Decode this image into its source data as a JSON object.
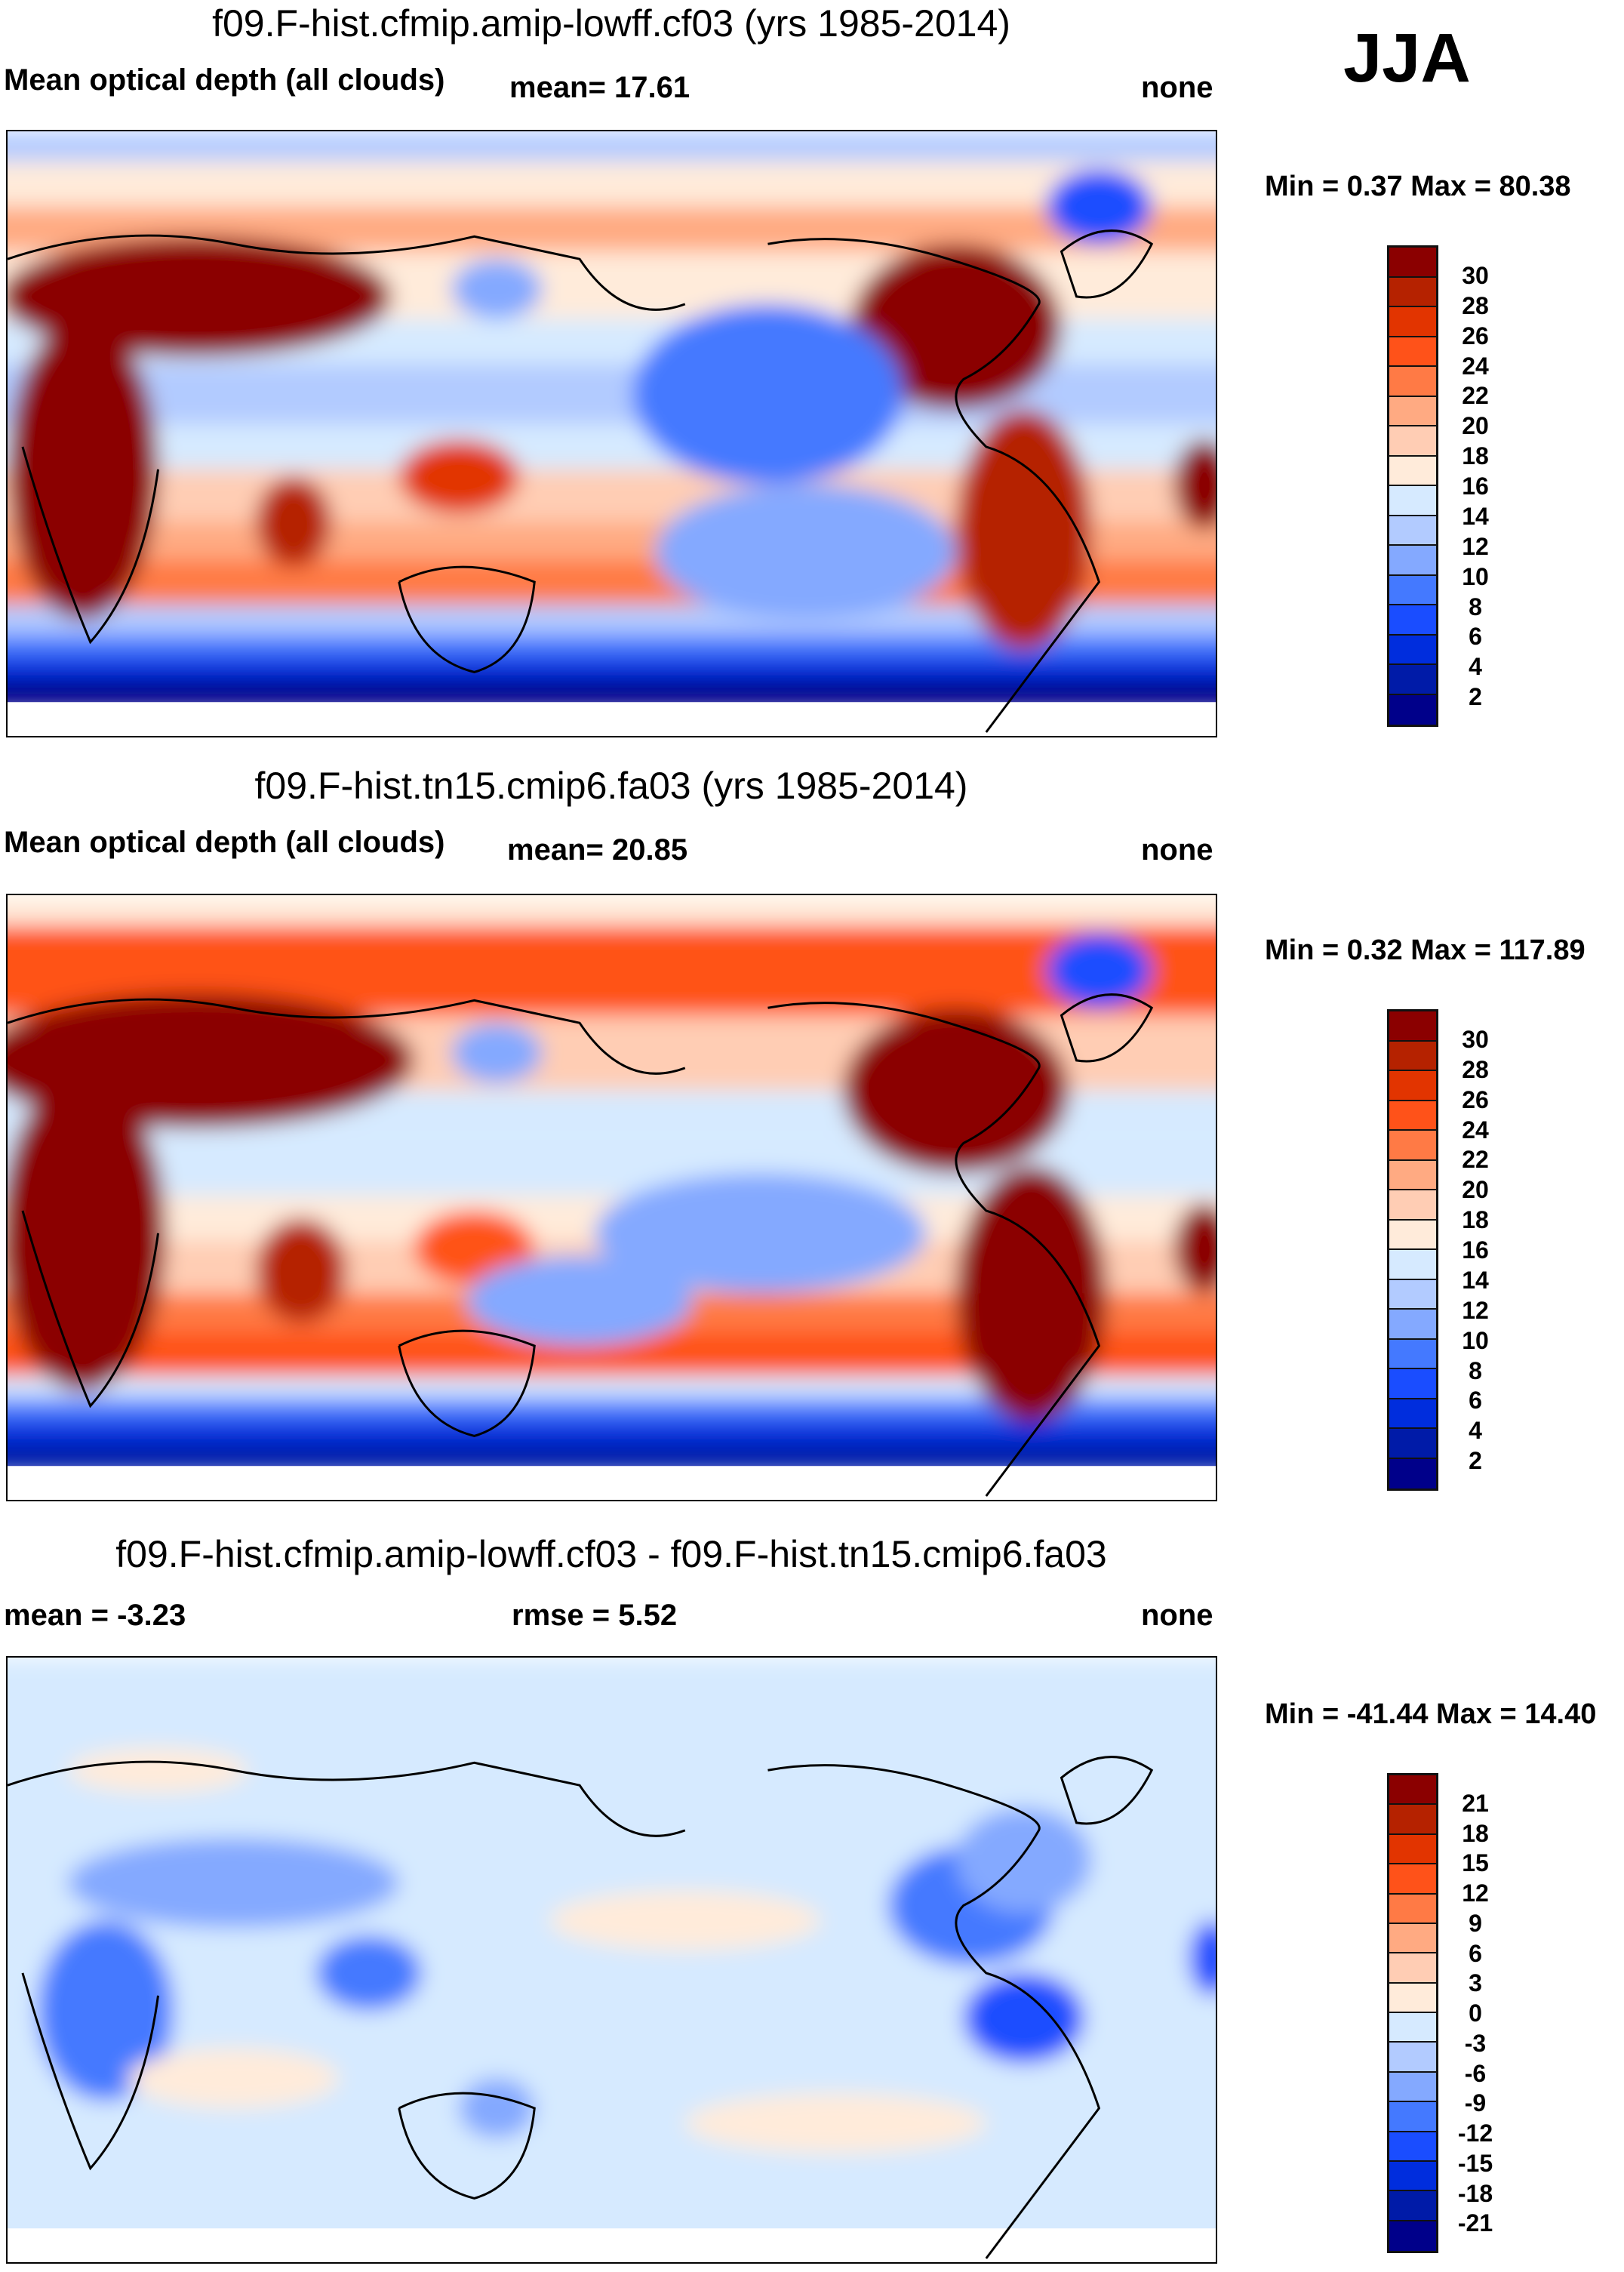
{
  "season": "JJA",
  "chart_data": [
    {
      "type": "heatmap",
      "title": "f09.F-hist.cfmip.amip-lowff.cf03 (yrs 1985-2014)",
      "variable": "Mean optical depth (all clouds)",
      "mean_label": "mean=  17.61",
      "right_label": "none",
      "minmax_label": "Min =   0.37 Max =  80.38",
      "min": 0.37,
      "max": 80.38,
      "mean": 17.61,
      "levels": [
        "30",
        "28",
        "26",
        "24",
        "22",
        "20",
        "18",
        "16",
        "14",
        "12",
        "10",
        "8",
        "6",
        "4",
        "2"
      ],
      "colors": [
        "#8b0000",
        "#b52200",
        "#e23400",
        "#ff5219",
        "#ff7a45",
        "#ffaa82",
        "#ffcdb4",
        "#ffebda",
        "#d6eaff",
        "#b2cbff",
        "#84a9ff",
        "#4479ff",
        "#1a4dff",
        "#002ddd",
        "#001ba8",
        "#00008a"
      ]
    },
    {
      "type": "heatmap",
      "title": "f09.F-hist.tn15.cmip6.fa03 (yrs 1985-2014)",
      "variable": "Mean optical depth (all clouds)",
      "mean_label": "mean=  20.85",
      "right_label": "none",
      "minmax_label": "Min =   0.32 Max = 117.89",
      "min": 0.32,
      "max": 117.89,
      "mean": 20.85,
      "levels": [
        "30",
        "28",
        "26",
        "24",
        "22",
        "20",
        "18",
        "16",
        "14",
        "12",
        "10",
        "8",
        "6",
        "4",
        "2"
      ],
      "colors": [
        "#8b0000",
        "#b52200",
        "#e23400",
        "#ff5219",
        "#ff7a45",
        "#ffaa82",
        "#ffcdb4",
        "#ffebda",
        "#d6eaff",
        "#b2cbff",
        "#84a9ff",
        "#4479ff",
        "#1a4dff",
        "#002ddd",
        "#001ba8",
        "#00008a"
      ]
    },
    {
      "type": "heatmap",
      "title": "f09.F-hist.cfmip.amip-lowff.cf03 - f09.F-hist.tn15.cmip6.fa03",
      "mean_label": "mean =  -3.23",
      "rmse_label": "rmse =    5.52",
      "right_label": "none",
      "minmax_label": "Min = -41.44 Max =  14.40",
      "min": -41.44,
      "max": 14.4,
      "mean": -3.23,
      "rmse": 5.52,
      "levels": [
        "21",
        "18",
        "15",
        "12",
        "9",
        "6",
        "3",
        "0",
        "-3",
        "-6",
        "-9",
        "-12",
        "-15",
        "-18",
        "-21"
      ],
      "colors": [
        "#8b0000",
        "#b52200",
        "#e23400",
        "#ff5219",
        "#ff7a45",
        "#ffaa82",
        "#ffcdb4",
        "#ffebda",
        "#d6eaff",
        "#b2cbff",
        "#84a9ff",
        "#4479ff",
        "#1a4dff",
        "#002ddd",
        "#001ba8",
        "#00008a"
      ]
    }
  ]
}
